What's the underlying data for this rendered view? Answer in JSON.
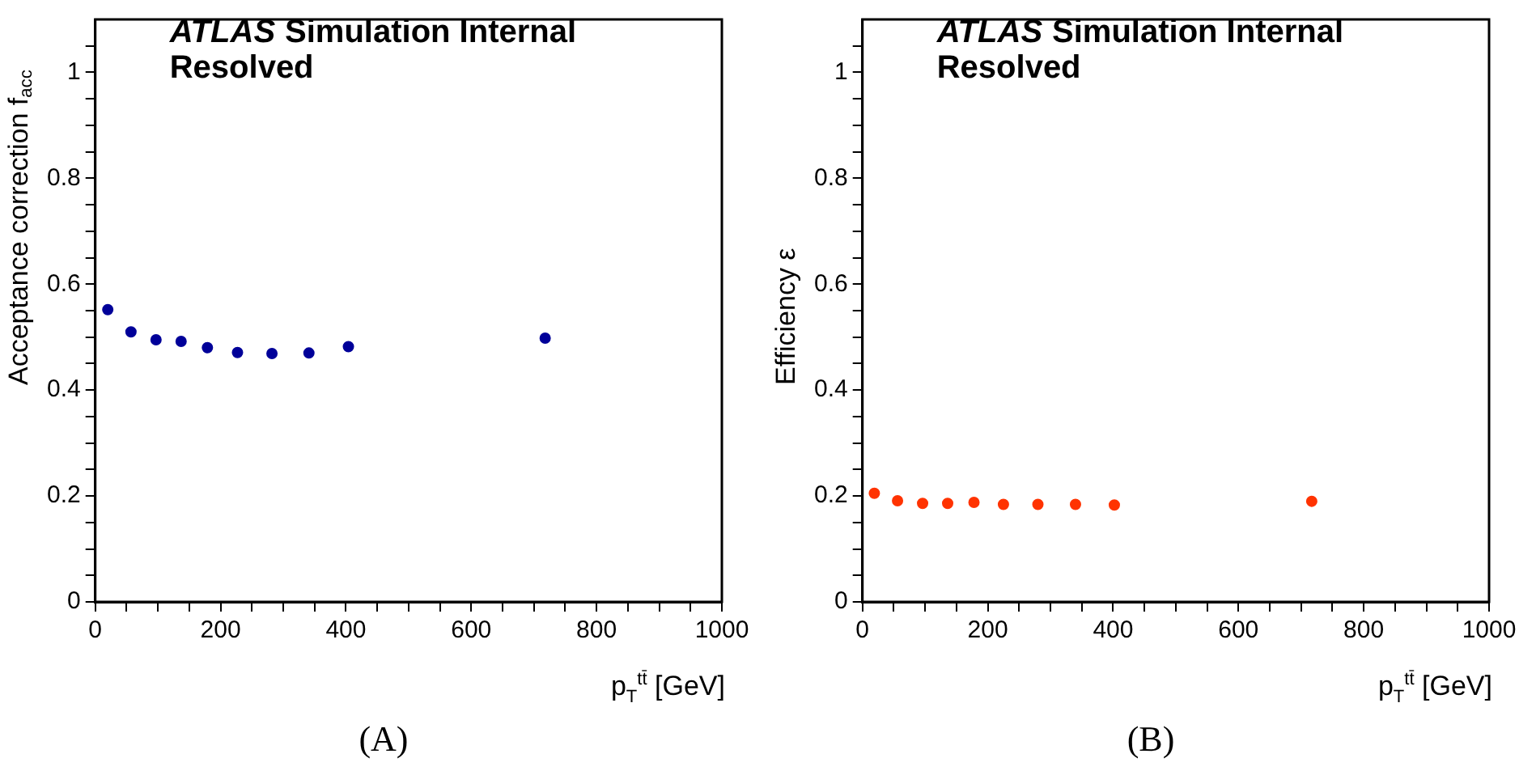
{
  "chart_data": [
    {
      "type": "scatter",
      "ylabel": "Acceptance correction f$_{acc}$",
      "xlabel": "p$_{T}$$^{tt̄}$ [GeV]",
      "annotations": [
        "ATLAS",
        "Simulation Internal",
        "Resolved",
        "(A)"
      ],
      "marker": "circle",
      "grid": false,
      "legend": false,
      "xlim": [
        0,
        1000
      ],
      "xticks": [
        0,
        {
          "value": 50,
          "label": null
        },
        {
          "value": 100,
          "label": null
        },
        {
          "value": 150,
          "label": null
        },
        200,
        {
          "value": 250,
          "label": null
        },
        {
          "value": 300,
          "label": null
        },
        {
          "value": 350,
          "label": null
        },
        400,
        {
          "value": 450,
          "label": null
        },
        {
          "value": 500,
          "label": null
        },
        {
          "value": 550,
          "label": null
        },
        600,
        {
          "value": 650,
          "label": null
        },
        {
          "value": 700,
          "label": null
        },
        {
          "value": 750,
          "label": null
        },
        800,
        {
          "value": 850,
          "label": null
        },
        {
          "value": 900,
          "label": null
        },
        {
          "value": 950,
          "label": null
        },
        1000
      ],
      "ylim": [
        0,
        1.1
      ],
      "yticks": [
        0,
        {
          "value": 0.05,
          "label": null
        },
        {
          "value": 0.1,
          "label": null
        },
        {
          "value": 0.15,
          "label": null
        },
        0.2,
        {
          "value": 0.25,
          "label": null
        },
        {
          "value": 0.3,
          "label": null
        },
        {
          "value": 0.35,
          "label": null
        },
        0.4,
        {
          "value": 0.45,
          "label": null
        },
        {
          "value": 0.5,
          "label": null
        },
        {
          "value": 0.55,
          "label": null
        },
        0.6,
        {
          "value": 0.65,
          "label": null
        },
        {
          "value": 0.7,
          "label": null
        },
        {
          "value": 0.75,
          "label": null
        },
        0.8,
        {
          "value": 0.85,
          "label": null
        },
        {
          "value": 0.9,
          "label": null
        },
        {
          "value": 0.95,
          "label": null
        },
        1,
        {
          "value": 1.05,
          "label": null
        }
      ],
      "series": [
        {
          "color": "#000099",
          "x": [
            20,
            57,
            97,
            137,
            179,
            227,
            282,
            341,
            404,
            718
          ],
          "values": [
            0.552,
            0.51,
            0.495,
            0.492,
            0.48,
            0.471,
            0.469,
            0.47,
            0.482,
            0.498
          ]
        }
      ]
    },
    {
      "type": "scatter",
      "ylabel": "Efficiency ε",
      "xlabel": "p$_{T}$$^{tt̄}$ [GeV]",
      "annotations": [
        "ATLAS",
        "Simulation Internal",
        "Resolved",
        "(B)"
      ],
      "marker": "circle",
      "grid": false,
      "legend": false,
      "xlim": [
        0,
        1000
      ],
      "xticks": [
        0,
        {
          "value": 50,
          "label": null
        },
        {
          "value": 100,
          "label": null
        },
        {
          "value": 150,
          "label": null
        },
        200,
        {
          "value": 250,
          "label": null
        },
        {
          "value": 300,
          "label": null
        },
        {
          "value": 350,
          "label": null
        },
        400,
        {
          "value": 450,
          "label": null
        },
        {
          "value": 500,
          "label": null
        },
        {
          "value": 550,
          "label": null
        },
        600,
        {
          "value": 650,
          "label": null
        },
        {
          "value": 700,
          "label": null
        },
        {
          "value": 750,
          "label": null
        },
        800,
        {
          "value": 850,
          "label": null
        },
        {
          "value": 900,
          "label": null
        },
        {
          "value": 950,
          "label": null
        },
        1000
      ],
      "ylim": [
        0,
        1.1
      ],
      "yticks": [
        0,
        {
          "value": 0.05,
          "label": null
        },
        {
          "value": 0.1,
          "label": null
        },
        {
          "value": 0.15,
          "label": null
        },
        0.2,
        {
          "value": 0.25,
          "label": null
        },
        {
          "value": 0.3,
          "label": null
        },
        {
          "value": 0.35,
          "label": null
        },
        0.4,
        {
          "value": 0.45,
          "label": null
        },
        {
          "value": 0.5,
          "label": null
        },
        {
          "value": 0.55,
          "label": null
        },
        0.6,
        {
          "value": 0.65,
          "label": null
        },
        {
          "value": 0.7,
          "label": null
        },
        {
          "value": 0.75,
          "label": null
        },
        0.8,
        {
          "value": 0.85,
          "label": null
        },
        {
          "value": 0.9,
          "label": null
        },
        {
          "value": 0.95,
          "label": null
        },
        1,
        {
          "value": 1.05,
          "label": null
        }
      ],
      "series": [
        {
          "color": "#ff3300",
          "x": [
            19,
            56,
            96,
            136,
            178,
            225,
            280,
            340,
            402,
            717
          ],
          "values": [
            0.205,
            0.191,
            0.186,
            0.186,
            0.188,
            0.184,
            0.184,
            0.184,
            0.183,
            0.19
          ]
        }
      ]
    }
  ]
}
